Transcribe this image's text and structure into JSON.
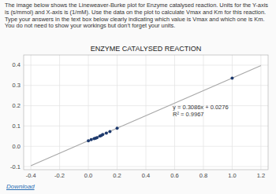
{
  "chart_data": {
    "type": "scatter",
    "title": "ENZYME CATALYSED REACTION",
    "subtitle": "The image below shows the Lineweaver-Burke plot for Enzyme catalysed reaction. Units for the Y-axis is (s/mmol) and X-axis is (1/mM). Use the data on the plot to calculate Vmax and Km for this reaction. Type your answers in the text box below clearly indicating which value is Vmax and which one is Km. You do not need to show your workings but don’t forget your units.",
    "annotations": [
      "y = 0.3086x + 0.0276",
      "R² = 0.9967",
      "Download"
    ],
    "series": [
      {
        "type": "line",
        "color": "#a8a8a8",
        "x": [
          -0.4,
          1.2
        ],
        "values": [
          -0.09584,
          0.39792
        ]
      },
      {
        "type": "scatter",
        "color": "#1e3a6e",
        "x": [
          0.0,
          0.02,
          0.04,
          0.05,
          0.06,
          0.08,
          0.09,
          0.1,
          0.125,
          0.15,
          0.2,
          1.0
        ],
        "values": [
          0.027,
          0.033,
          0.038,
          0.04,
          0.043,
          0.05,
          0.053,
          0.058,
          0.065,
          0.073,
          0.089,
          0.336
        ]
      }
    ],
    "xlim": [
      -0.45,
      1.25
    ],
    "ylim": [
      -0.115,
      0.45
    ],
    "xticks": [
      -0.4,
      -0.2,
      {
        "value": 0.0,
        "label": "0.0"
      },
      0.2,
      0.4,
      0.6,
      0.8,
      {
        "value": 1.0,
        "label": "1.0"
      },
      1.2
    ],
    "yticks": [
      -0.1,
      {
        "value": 0.0,
        "label": "0.0"
      },
      0.1,
      0.2,
      0.3,
      0.4
    ],
    "grid": true
  }
}
